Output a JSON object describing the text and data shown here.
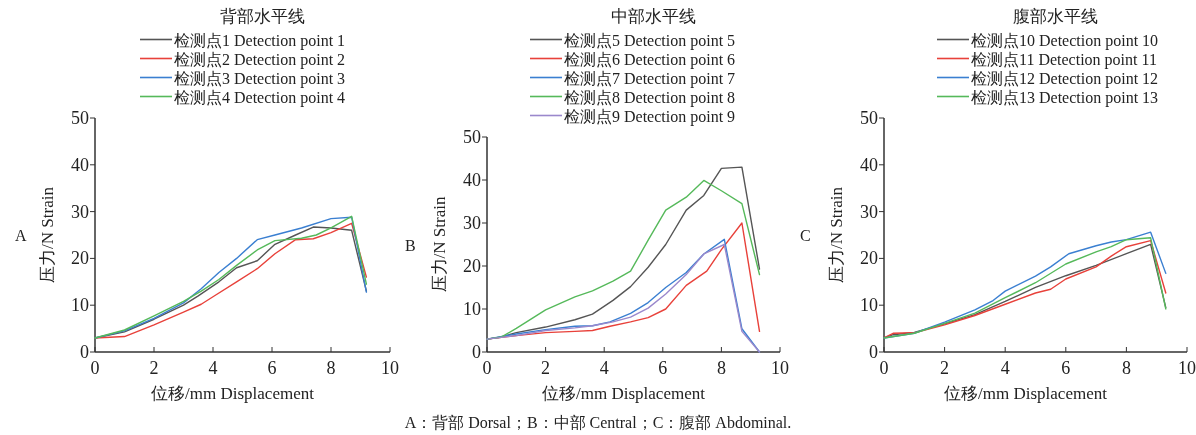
{
  "chart_data": [
    {
      "type": "line",
      "title": "背部水平线",
      "xlabel": "位移/mm Displacement",
      "ylabel": "压力/N Strain",
      "annotations": [
        "A"
      ],
      "xlim": [
        0,
        10
      ],
      "ylim": [
        0,
        50
      ],
      "xticks": [
        0,
        2,
        4,
        6,
        8,
        10
      ],
      "yticks": [
        0,
        10,
        20,
        30,
        40,
        50
      ],
      "legend": "top",
      "grid": false,
      "marker": "none",
      "line_style": "solid",
      "series": [
        {
          "name": "检测点1 Detection point 1",
          "color": "#555555",
          "x": [
            0,
            1,
            2,
            3,
            3.5,
            4.2,
            4.8,
            5.5,
            6.1,
            6.8,
            7.4,
            8,
            8.7,
            9.2
          ],
          "values": [
            3,
            4.3,
            7,
            10,
            12,
            15,
            18,
            19.5,
            23,
            25,
            26.7,
            26.5,
            26,
            13
          ]
        },
        {
          "name": "检测点2 Detection point 2",
          "color": "#e8413a",
          "x": [
            0,
            1,
            2,
            3,
            3.6,
            4,
            4.8,
            5.5,
            6.1,
            6.8,
            7.4,
            8,
            8.7,
            9.2
          ],
          "values": [
            3,
            3.3,
            5.8,
            8.5,
            10.2,
            11.8,
            15,
            17.8,
            21,
            24,
            24.2,
            25.5,
            27.5,
            16
          ]
        },
        {
          "name": "检测点3 Detection point 3",
          "color": "#3a7fd1",
          "x": [
            0,
            1,
            2,
            3,
            3.6,
            4.2,
            4.8,
            5.5,
            6.1,
            7,
            8,
            8.7,
            9.2
          ],
          "values": [
            3,
            4.5,
            7.2,
            10.5,
            13.5,
            17,
            20,
            24,
            25,
            26.5,
            28.5,
            28.8,
            12.8
          ]
        },
        {
          "name": "检测点4 Detection point 4",
          "color": "#55b95a",
          "x": [
            0,
            1,
            2,
            3,
            3.6,
            4.2,
            4.8,
            5.5,
            6.1,
            7,
            7.5,
            8,
            8.7,
            9.2
          ],
          "values": [
            3,
            4.7,
            7.7,
            10.8,
            13,
            15.5,
            18.5,
            21.8,
            23.8,
            24.3,
            25,
            26.5,
            29,
            14.5
          ]
        }
      ]
    },
    {
      "type": "line",
      "title": "中部水平线",
      "xlabel": "位移/mm Displacement",
      "ylabel": "压力/N Strain",
      "annotations": [
        "B",
        "A：背部 Dorsal；B：中部 Central；C：腹部 Abdominal."
      ],
      "xlim": [
        0,
        10
      ],
      "ylim": [
        0,
        50
      ],
      "xticks": [
        0,
        2,
        4,
        6,
        8,
        10
      ],
      "yticks": [
        0,
        10,
        20,
        30,
        40,
        50
      ],
      "legend": "top",
      "grid": false,
      "marker": "none",
      "line_style": "solid",
      "series": [
        {
          "name": "检测点5 Detection point 5",
          "color": "#555555",
          "x": [
            0,
            0.5,
            1,
            2,
            3,
            3.6,
            4.3,
            4.9,
            5.5,
            6.1,
            6.8,
            7.4,
            8,
            8.7,
            9.3
          ],
          "values": [
            3,
            3.5,
            4.5,
            5.8,
            7.5,
            8.8,
            12,
            15.2,
            19.7,
            25,
            33,
            36.4,
            42.7,
            43,
            19.3
          ]
        },
        {
          "name": "检测点6 Detection point 6",
          "color": "#e8413a",
          "x": [
            0,
            1,
            2,
            3,
            3.6,
            4.2,
            4.9,
            5.5,
            6.1,
            6.8,
            7.5,
            8,
            8.7,
            9.3
          ],
          "values": [
            3,
            3.8,
            4.5,
            4.8,
            5,
            6,
            7,
            8,
            10,
            15.5,
            18.8,
            23.8,
            30,
            4.8
          ]
        },
        {
          "name": "检测点7 Detection point 7",
          "color": "#3a7fd1",
          "x": [
            0,
            1,
            2,
            3,
            3.6,
            4.2,
            4.9,
            5.5,
            6.1,
            6.8,
            7.4,
            8.1,
            8.7,
            9.3
          ],
          "values": [
            3,
            4.2,
            5.2,
            6,
            6.1,
            7,
            9,
            11.5,
            15,
            18.5,
            22.8,
            26.2,
            5.4,
            0
          ]
        },
        {
          "name": "检测点8 Detection point 8",
          "color": "#55b95a",
          "x": [
            0,
            0.5,
            1,
            2,
            3,
            3.6,
            4.3,
            4.9,
            5.5,
            6.1,
            6.8,
            7.4,
            8,
            8.7,
            9.3
          ],
          "values": [
            3,
            3.5,
            5.5,
            9.8,
            12.8,
            14.2,
            16.5,
            18.8,
            26,
            33,
            36,
            39.9,
            37.5,
            34.5,
            18
          ]
        },
        {
          "name": "检测点9 Detection point 9",
          "color": "#9a88cc",
          "x": [
            0,
            1,
            2,
            3,
            3.6,
            4.3,
            4.9,
            5.5,
            6.1,
            6.8,
            7.4,
            8.1,
            8.7,
            9.3
          ],
          "values": [
            3,
            3.8,
            5,
            5.6,
            6.1,
            7,
            8.1,
            10.2,
            13.5,
            18,
            22.8,
            25,
            4.8,
            0
          ]
        }
      ]
    },
    {
      "type": "line",
      "title": "腹部水平线",
      "xlabel": "位移/mm Displacement",
      "ylabel": "压力/N Strain",
      "annotations": [
        "C"
      ],
      "xlim": [
        0,
        10
      ],
      "ylim": [
        0,
        50
      ],
      "xticks": [
        0,
        2,
        4,
        6,
        8,
        10
      ],
      "yticks": [
        0,
        10,
        20,
        30,
        40,
        50
      ],
      "legend": "top",
      "grid": false,
      "marker": "none",
      "line_style": "solid",
      "series": [
        {
          "name": "检测点10 Detection point 10",
          "color": "#555555",
          "x": [
            0,
            0.3,
            1,
            2,
            3,
            4,
            5,
            6,
            7,
            8,
            8.8,
            9.3
          ],
          "values": [
            3,
            3.7,
            4.2,
            6,
            8,
            10.8,
            13.8,
            16.3,
            18.5,
            21,
            23,
            9.5
          ]
        },
        {
          "name": "检测点11 Detection point 11",
          "color": "#e8413a",
          "x": [
            0,
            0.3,
            1,
            2,
            3,
            4,
            5,
            5.5,
            6,
            7,
            7.5,
            8,
            8.8,
            9.3
          ],
          "values": [
            3,
            4,
            4.1,
            5.8,
            7.8,
            10.2,
            12.6,
            13.4,
            15.6,
            18.2,
            20.5,
            22.5,
            23.8,
            12.6
          ]
        },
        {
          "name": "检测点12 Detection point 12",
          "color": "#3a7fd1",
          "x": [
            0,
            1,
            2,
            3,
            3.6,
            4,
            5,
            5.5,
            6.1,
            7,
            7.5,
            8,
            8.8,
            9.3
          ],
          "values": [
            3,
            4,
            6.4,
            9,
            11,
            13,
            16.2,
            18.2,
            21,
            22.7,
            23.5,
            24,
            25.6,
            16.8
          ]
        },
        {
          "name": "检测点13 Detection point 13",
          "color": "#55b95a",
          "x": [
            0,
            1,
            2,
            3,
            4,
            5,
            6,
            7,
            7.5,
            8,
            8.8,
            9.3
          ],
          "values": [
            3,
            4,
            6.1,
            8.3,
            11.6,
            14.8,
            18.8,
            21.4,
            22.5,
            24,
            24.4,
            9.2
          ]
        }
      ]
    }
  ]
}
